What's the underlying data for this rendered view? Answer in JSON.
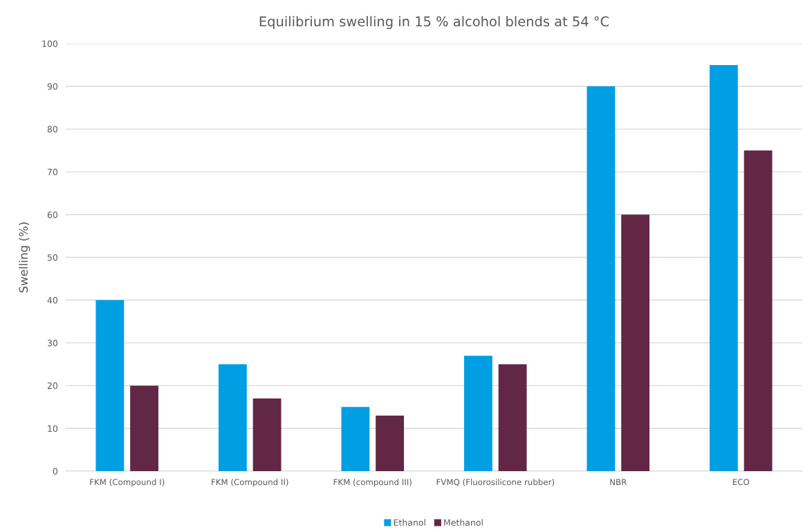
{
  "chart_data": {
    "type": "bar",
    "title": "Equilibrium swelling in 15 % alcohol blends at 54 °C",
    "ylabel": "Swelling (%)",
    "categories": [
      "FKM (Compound I)",
      "FKM (Compound II)",
      "FKM (compound III)",
      "FVMQ (Fluorosilicone rubber)",
      "NBR",
      "ECO"
    ],
    "series": [
      {
        "name": "Ethanol",
        "color": "#009fe3",
        "values": [
          40,
          25,
          15,
          27,
          90,
          95
        ]
      },
      {
        "name": "Methanol",
        "color": "#612744",
        "values": [
          20,
          17,
          13,
          25,
          60,
          75
        ]
      }
    ],
    "ylim": [
      0,
      100
    ],
    "yticks": [
      0,
      10,
      20,
      30,
      40,
      50,
      60,
      70,
      80,
      90,
      100
    ],
    "grid": "y",
    "legend": "bottom"
  }
}
